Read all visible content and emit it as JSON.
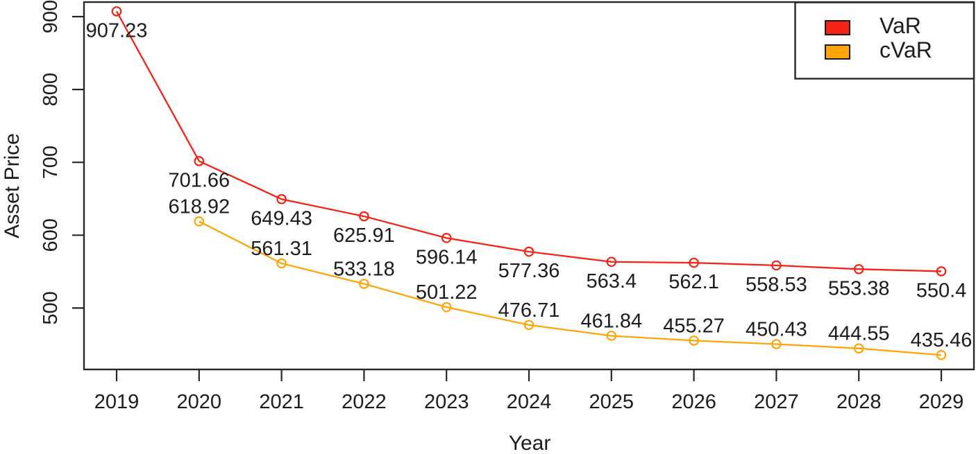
{
  "chart_data": {
    "type": "line",
    "title": "",
    "xlabel": "Year",
    "ylabel": "Asset Price",
    "categories": [
      "2019",
      "2020",
      "2021",
      "2022",
      "2023",
      "2024",
      "2025",
      "2026",
      "2027",
      "2028",
      "2029"
    ],
    "y_ticks": [
      500,
      600,
      700,
      800,
      900
    ],
    "ylim": [
      417,
      920
    ],
    "grid": false,
    "background_color": "#ffffff",
    "axis_color": "#262626",
    "text_color": "#1c1c1c",
    "legend": {
      "position": "top-right",
      "entries": [
        {
          "label": "VaR",
          "color": "#f32315"
        },
        {
          "label": "cVaR",
          "color": "#ffa50a"
        }
      ]
    },
    "series": [
      {
        "name": "VaR",
        "color": "#f32315",
        "marker": "open-circle",
        "label_placement": "below",
        "values": [
          907.23,
          701.66,
          649.43,
          625.91,
          596.14,
          577.36,
          563.4,
          562.1,
          558.53,
          553.38,
          550.4
        ]
      },
      {
        "name": "cVaR",
        "color": "#ffa50a",
        "marker": "open-circle",
        "label_placement": "above",
        "values": [
          null,
          618.92,
          561.31,
          533.18,
          501.22,
          476.71,
          461.84,
          455.27,
          450.43,
          444.55,
          435.46
        ]
      }
    ]
  }
}
